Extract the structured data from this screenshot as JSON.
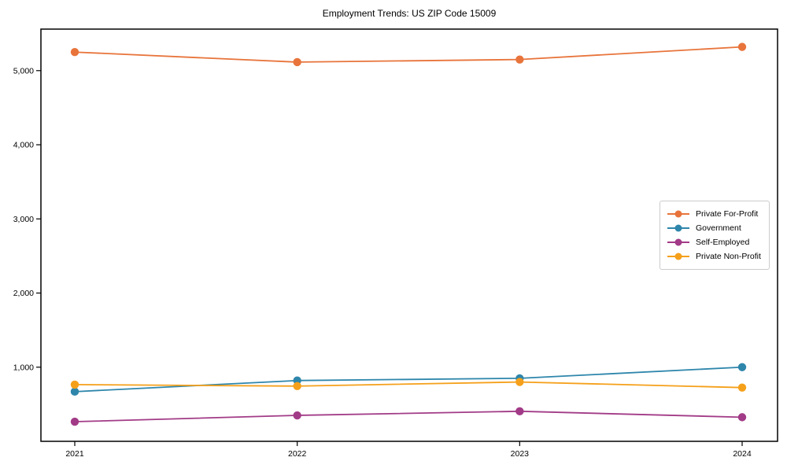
{
  "title": "Employment Trends: US ZIP Code 15009",
  "chart_data": {
    "type": "line",
    "title": "Employment Trends: US ZIP Code 15009",
    "xlabel": "",
    "ylabel": "",
    "categories": [
      "2021",
      "2022",
      "2023",
      "2024"
    ],
    "series": [
      {
        "name": "Private For-Profit",
        "color": "#E8743B",
        "values": [
          5250,
          5115,
          5150,
          5320
        ]
      },
      {
        "name": "Government",
        "color": "#2E86AB",
        "values": [
          670,
          820,
          850,
          1000
        ]
      },
      {
        "name": "Self-Employed",
        "color": "#A23B87",
        "values": [
          265,
          350,
          405,
          325
        ]
      },
      {
        "name": "Private Non-Profit",
        "color": "#F5A01A",
        "values": [
          765,
          745,
          800,
          725
        ]
      }
    ],
    "ylim": [
      0,
      5560
    ],
    "yticks": [
      {
        "value": 1000,
        "label": "1,000"
      },
      {
        "value": 2000,
        "label": "2,000"
      },
      {
        "value": 3000,
        "label": "3,000"
      },
      {
        "value": 4000,
        "label": "4,000"
      },
      {
        "value": 5000,
        "label": "5,000"
      }
    ],
    "grid": false,
    "legend_position": "center-right",
    "marker": "circle"
  }
}
